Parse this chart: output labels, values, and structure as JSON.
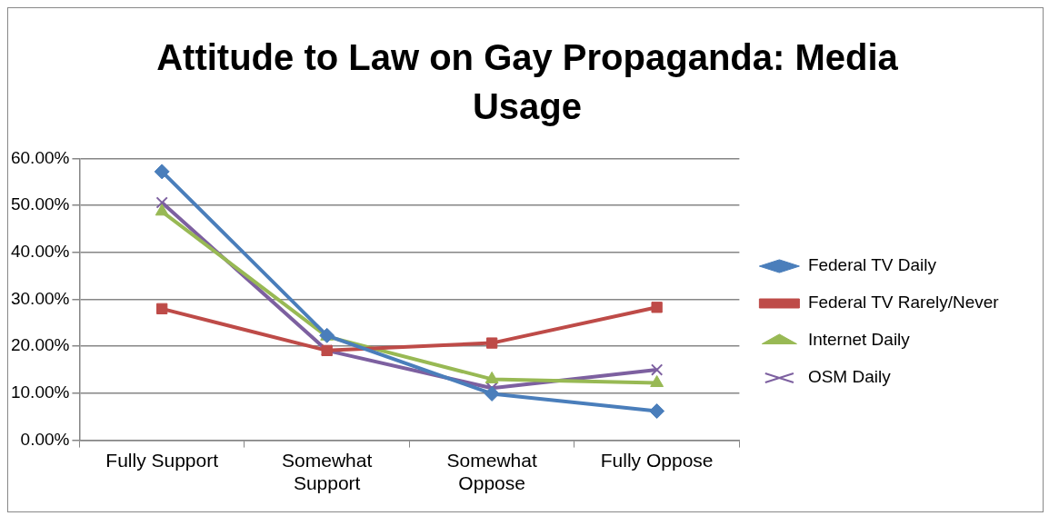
{
  "chart_data": {
    "type": "line",
    "title": "Attitude to Law on Gay Propaganda: Media Usage",
    "categories": [
      "Fully Support",
      "Somewhat Support",
      "Somewhat Oppose",
      "Fully Oppose"
    ],
    "series": [
      {
        "name": "Federal TV Daily",
        "color": "#4a7ebb",
        "marker": "diamond",
        "values": [
          57.2,
          22.3,
          9.9,
          6.2
        ]
      },
      {
        "name": "Federal TV Rarely/Never",
        "color": "#be4b48",
        "marker": "square",
        "values": [
          28.0,
          19.1,
          20.7,
          28.3
        ]
      },
      {
        "name": "Internet Daily",
        "color": "#98b954",
        "marker": "triangle",
        "values": [
          48.7,
          22.1,
          13.0,
          12.2
        ]
      },
      {
        "name": "OSM Daily",
        "color": "#7d60a0",
        "marker": "cross",
        "values": [
          50.6,
          19.1,
          11.1,
          15.0
        ]
      }
    ],
    "ylim": [
      0,
      60
    ],
    "yticks": [
      {
        "value": 0,
        "label": "0.00%"
      },
      {
        "value": 10,
        "label": "10.00%"
      },
      {
        "value": 20,
        "label": "20.00%"
      },
      {
        "value": 30,
        "label": "30.00%"
      },
      {
        "value": 40,
        "label": "40.00%"
      },
      {
        "value": 50,
        "label": "50.00%"
      },
      {
        "value": 60,
        "label": "60.00%"
      }
    ],
    "grid": "y",
    "legend": "right",
    "line_style": "solid"
  }
}
